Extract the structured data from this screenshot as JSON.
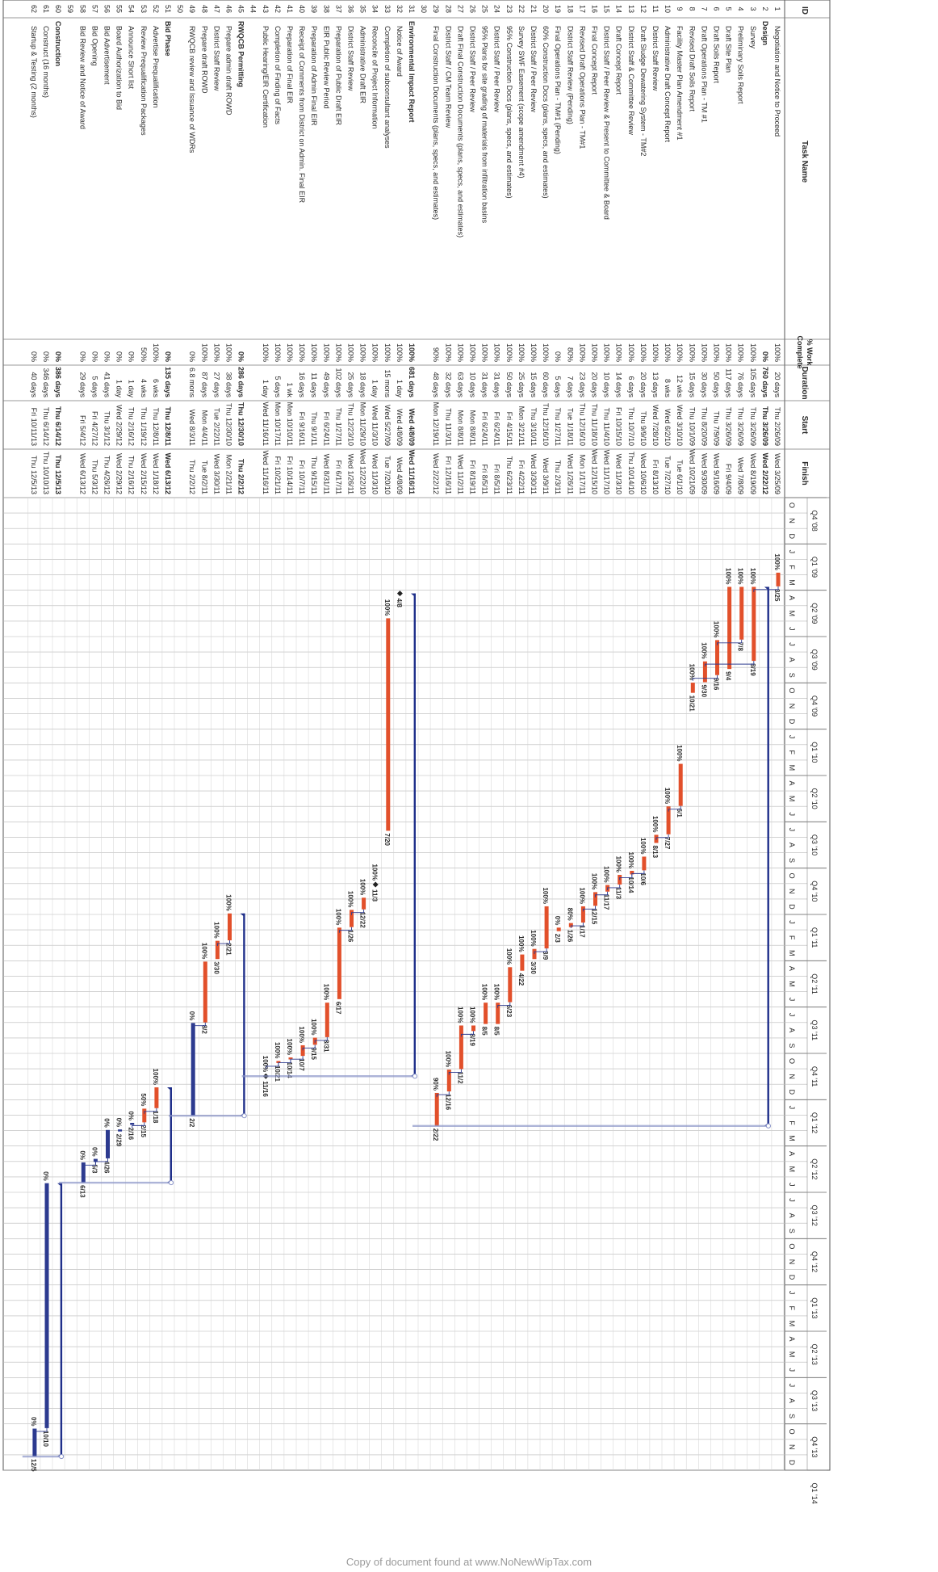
{
  "caption": "Copy of document found at www.NoNewWipTax.com",
  "headers": {
    "id": "ID",
    "task": "Task Name",
    "pct": "% Work Complete",
    "duration": "Duration",
    "start": "Start",
    "finish": "Finish"
  },
  "quarters": [
    "Q4 '08",
    "Q1 '09",
    "Q2 '09",
    "Q3 '09",
    "Q4 '09",
    "Q1 '10",
    "Q2 '10",
    "Q3 '10",
    "Q4 '10",
    "Q1 '11",
    "Q2 '11",
    "Q3 '11",
    "Q4 '11",
    "Q1 '12",
    "Q2 '12",
    "Q3 '12",
    "Q4 '12",
    "Q1 '13",
    "Q2 '13",
    "Q3 '13",
    "Q4 '13",
    "Q1 '14"
  ],
  "month_letters": "ONDJFMAMJJASONDJFMAMJJASONDJFMAMJJASONDJFMAMJJASONDJFMAMJJASONDJFMAMJJASOND",
  "tasks": [
    {
      "id": "1",
      "name": "Negotiation and Notice to Proceed",
      "pct": "100%",
      "dur": "20 days",
      "start": "Thu 2/26/09",
      "finish": "Wed 3/25/09",
      "s": "2009-02-26",
      "f": "2009-03-25",
      "kind": "task",
      "label": "3/25",
      "plabel": "100%"
    },
    {
      "id": "2",
      "name": "Design",
      "pct": "0%",
      "dur": "760 days",
      "start": "Thu 3/26/09",
      "finish": "Wed 2/22/12",
      "s": "2009-03-26",
      "f": "2012-02-22",
      "kind": "summary"
    },
    {
      "id": "3",
      "name": "Survey",
      "pct": "100%",
      "dur": "105 days",
      "start": "Thu 3/26/09",
      "finish": "Wed 8/19/09",
      "s": "2009-03-26",
      "f": "2009-08-19",
      "kind": "task",
      "label": "8/19",
      "plabel": "100%"
    },
    {
      "id": "4",
      "name": "Preliminary Soils Report",
      "pct": "100%",
      "dur": "76 days",
      "start": "Thu 3/26/09",
      "finish": "Wed 7/8/09",
      "s": "2009-03-26",
      "f": "2009-07-08",
      "kind": "task",
      "label": "7/8",
      "plabel": "100%"
    },
    {
      "id": "5",
      "name": "Draft Site Plan",
      "pct": "100%",
      "dur": "117 days",
      "start": "Thu 3/26/09",
      "finish": "Fri 9/4/09",
      "s": "2009-03-26",
      "f": "2009-09-04",
      "kind": "task",
      "label": "9/4",
      "plabel": "100%"
    },
    {
      "id": "6",
      "name": "Draft Soils Report",
      "pct": "100%",
      "dur": "50 days",
      "start": "Thu 7/9/09",
      "finish": "Wed 9/16/09",
      "s": "2009-07-09",
      "f": "2009-09-16",
      "kind": "task",
      "label": "9/16",
      "plabel": "100%"
    },
    {
      "id": "7",
      "name": "Draft Operations Plan - TM #1",
      "pct": "100%",
      "dur": "30 days",
      "start": "Thu 8/20/09",
      "finish": "Wed 9/30/09",
      "s": "2009-08-20",
      "f": "2009-09-30",
      "kind": "task",
      "label": "9/30",
      "plabel": "100%"
    },
    {
      "id": "8",
      "name": "Revised Draft Soils Report",
      "pct": "100%",
      "dur": "15 days",
      "start": "Thu 10/1/09",
      "finish": "Wed 10/21/09",
      "s": "2009-10-01",
      "f": "2009-10-21",
      "kind": "task",
      "label": "10/21",
      "plabel": "100%"
    },
    {
      "id": "9",
      "name": "Facility Master Plan Amendment #1",
      "pct": "100%",
      "dur": "12 wks",
      "start": "Wed 3/10/10",
      "finish": "Tue 6/1/10",
      "s": "2010-03-10",
      "f": "2010-06-01",
      "kind": "task",
      "label": "6/1",
      "plabel": "100%"
    },
    {
      "id": "10",
      "name": "Administrative Draft Concept Report",
      "pct": "100%",
      "dur": "8 wks",
      "start": "Wed 6/2/10",
      "finish": "Tue 7/27/10",
      "s": "2010-06-02",
      "f": "2010-07-27",
      "kind": "task",
      "label": "7/27",
      "plabel": "100%"
    },
    {
      "id": "11",
      "name": "District Staff Review",
      "pct": "100%",
      "dur": "13 days",
      "start": "Wed 7/28/10",
      "finish": "Fri 8/13/10",
      "s": "2010-07-28",
      "f": "2010-08-13",
      "kind": "task",
      "label": "8/13",
      "plabel": "100%"
    },
    {
      "id": "12",
      "name": "Draft Sludge Dewatering System - TM#2",
      "pct": "100%",
      "dur": "20 days",
      "start": "Thu 9/9/10",
      "finish": "Wed 10/6/10",
      "s": "2010-09-09",
      "f": "2010-10-06",
      "kind": "task",
      "label": "10/6",
      "plabel": "100%"
    },
    {
      "id": "13",
      "name": "District Staff & Committee Review",
      "pct": "100%",
      "dur": "6 days",
      "start": "Thu 10/7/10",
      "finish": "Thu 10/14/10",
      "s": "2010-10-07",
      "f": "2010-10-14",
      "kind": "task",
      "label": "10/14",
      "plabel": "100%"
    },
    {
      "id": "14",
      "name": "Draft Concept Report",
      "pct": "100%",
      "dur": "14 days",
      "start": "Fri 10/15/10",
      "finish": "Wed 11/3/10",
      "s": "2010-10-15",
      "f": "2010-11-03",
      "kind": "task",
      "label": "11/3",
      "plabel": "100%"
    },
    {
      "id": "15",
      "name": "District Staff / Peer Review & Present to Committee & Board",
      "pct": "100%",
      "dur": "10 days",
      "start": "Thu 11/4/10",
      "finish": "Wed 11/17/10",
      "s": "2010-11-04",
      "f": "2010-11-17",
      "kind": "task",
      "label": "11/17",
      "plabel": "100%"
    },
    {
      "id": "16",
      "name": "Final Concept Report",
      "pct": "100%",
      "dur": "20 days",
      "start": "Thu 11/18/10",
      "finish": "Wed 12/15/10",
      "s": "2010-11-18",
      "f": "2010-12-15",
      "kind": "task",
      "label": "12/15",
      "plabel": "100%"
    },
    {
      "id": "17",
      "name": "Revised Draft Operations Plan - TM#1",
      "pct": "100%",
      "dur": "23 days",
      "start": "Thu 12/16/10",
      "finish": "Mon 1/17/11",
      "s": "2010-12-16",
      "f": "2011-01-17",
      "kind": "task",
      "label": "1/17",
      "plabel": "100%"
    },
    {
      "id": "18",
      "name": "District Staff Review (Pending)",
      "pct": "80%",
      "dur": "7 days",
      "start": "Tue 1/18/11",
      "finish": "Wed 1/26/11",
      "s": "2011-01-18",
      "f": "2011-01-26",
      "kind": "task",
      "label": "1/26",
      "plabel": "80%"
    },
    {
      "id": "19",
      "name": "Final Operations Plan - TM#1 (Pending)",
      "pct": "0%",
      "dur": "5 days",
      "start": "Thu 1/27/11",
      "finish": "Thu 2/3/11",
      "s": "2011-01-27",
      "f": "2011-02-03",
      "kind": "task",
      "label": "2/3",
      "plabel": "0%"
    },
    {
      "id": "20",
      "name": "60% Construction Docs (plans, specs, and estimates)",
      "pct": "100%",
      "dur": "60 days",
      "start": "Thu 12/16/10",
      "finish": "Wed 3/9/11",
      "s": "2010-12-16",
      "f": "2011-03-09",
      "kind": "task",
      "label": "3/9",
      "plabel": "100%"
    },
    {
      "id": "21",
      "name": "District Staff / Peer Review",
      "pct": "100%",
      "dur": "15 days",
      "start": "Thu 3/10/11",
      "finish": "Wed 3/30/11",
      "s": "2011-03-10",
      "f": "2011-03-30",
      "kind": "task",
      "label": "3/30",
      "plabel": "100%"
    },
    {
      "id": "22",
      "name": "Survey SWF Easement (scope amendment #4)",
      "pct": "100%",
      "dur": "25 days",
      "start": "Mon 3/21/11",
      "finish": "Fri 4/22/11",
      "s": "2011-03-21",
      "f": "2011-04-22",
      "kind": "task",
      "label": "4/22",
      "plabel": "100%"
    },
    {
      "id": "23",
      "name": "95% Construction Docs (plans, specs, and estimates)",
      "pct": "100%",
      "dur": "50 days",
      "start": "Fri 4/15/11",
      "finish": "Thu 6/23/11",
      "s": "2011-04-15",
      "f": "2011-06-23",
      "kind": "task",
      "label": "6/23",
      "plabel": "100%"
    },
    {
      "id": "24",
      "name": "District Staff / Peer Review",
      "pct": "100%",
      "dur": "31 days",
      "start": "Fri 6/24/11",
      "finish": "Fri 8/5/11",
      "s": "2011-06-24",
      "f": "2011-08-05",
      "kind": "task",
      "label": "8/5",
      "plabel": "100%"
    },
    {
      "id": "25",
      "name": "95% Plans for site grading of materials from infiltration basins",
      "pct": "100%",
      "dur": "31 days",
      "start": "Fri 6/24/11",
      "finish": "Fri 8/5/11",
      "s": "2011-06-24",
      "f": "2011-08-05",
      "kind": "task",
      "label": "8/5",
      "plabel": "100%"
    },
    {
      "id": "26",
      "name": "District Staff / Peer Review",
      "pct": "100%",
      "dur": "10 days",
      "start": "Mon 8/8/11",
      "finish": "Fri 8/19/11",
      "s": "2011-08-08",
      "f": "2011-08-19",
      "kind": "task",
      "label": "8/19",
      "plabel": "100%"
    },
    {
      "id": "27",
      "name": "Draft Final Construction Documents (plans, specs, and estimates)",
      "pct": "100%",
      "dur": "63 days",
      "start": "Mon 8/8/11",
      "finish": "Wed 11/2/11",
      "s": "2011-08-08",
      "f": "2011-11-02",
      "kind": "task",
      "label": "11/2",
      "plabel": "100%"
    },
    {
      "id": "28",
      "name": "District Staff / CM Team Review",
      "pct": "100%",
      "dur": "32 days",
      "start": "Thu 11/3/11",
      "finish": "Fri 12/16/11",
      "s": "2011-11-03",
      "f": "2011-12-16",
      "kind": "task",
      "label": "12/16",
      "plabel": "100%"
    },
    {
      "id": "29",
      "name": "Final Construction Documents (plans, specs, and estimates)",
      "pct": "90%",
      "dur": "48 days",
      "start": "Mon 12/19/11",
      "finish": "Wed 2/22/12",
      "s": "2011-12-19",
      "f": "2012-02-22",
      "kind": "task",
      "label": "2/22",
      "plabel": "90%"
    },
    {
      "id": "30",
      "name": "",
      "pct": "",
      "dur": "",
      "start": "",
      "finish": "",
      "kind": "blank"
    },
    {
      "id": "31",
      "name": "Environmental Impact Report",
      "pct": "100%",
      "dur": "681 days",
      "start": "Wed 4/8/09",
      "finish": "Wed 11/16/11",
      "s": "2009-04-08",
      "f": "2011-11-16",
      "kind": "summary"
    },
    {
      "id": "32",
      "name": "Notice of Award",
      "pct": "100%",
      "dur": "1 day",
      "start": "Wed 4/8/09",
      "finish": "Wed 4/8/09",
      "s": "2009-04-08",
      "f": "2009-04-08",
      "kind": "milestone",
      "label": "4/8"
    },
    {
      "id": "33",
      "name": "Completion of subconsultant analyses",
      "pct": "100%",
      "dur": "15 mons",
      "start": "Wed 5/27/09",
      "finish": "Tue 7/20/10",
      "s": "2009-05-27",
      "f": "2010-07-20",
      "kind": "task",
      "label": "7/20",
      "plabel": "100%"
    },
    {
      "id": "34",
      "name": "Reconcile of Project Information",
      "pct": "100%",
      "dur": "1 day",
      "start": "Wed 11/3/10",
      "finish": "Wed 11/3/10",
      "s": "2010-11-03",
      "f": "2010-11-03",
      "kind": "milestone",
      "label": "11/3",
      "plabel": "100%"
    },
    {
      "id": "35",
      "name": "Administrative Draft EIR",
      "pct": "100%",
      "dur": "18 days",
      "start": "Mon 11/29/10",
      "finish": "Wed 12/22/10",
      "s": "2010-11-29",
      "f": "2010-12-22",
      "kind": "task",
      "label": "12/22",
      "plabel": "100%"
    },
    {
      "id": "36",
      "name": "District Staff Review",
      "pct": "100%",
      "dur": "25 days",
      "start": "Thu 12/23/10",
      "finish": "Wed 1/26/11",
      "s": "2010-12-23",
      "f": "2011-01-26",
      "kind": "task",
      "label": "1/26",
      "plabel": "100%"
    },
    {
      "id": "37",
      "name": "Preparation of Public Draft EIR",
      "pct": "100%",
      "dur": "102 days",
      "start": "Thu 1/27/11",
      "finish": "Fri 6/17/11",
      "s": "2011-01-27",
      "f": "2011-06-17",
      "kind": "task",
      "label": "6/17",
      "plabel": "100%"
    },
    {
      "id": "38",
      "name": "EIR Public Review Period",
      "pct": "100%",
      "dur": "49 days",
      "start": "Fri 6/24/11",
      "finish": "Wed 8/31/11",
      "s": "2011-06-24",
      "f": "2011-08-31",
      "kind": "task",
      "label": "8/31",
      "plabel": "100%"
    },
    {
      "id": "39",
      "name": "Preparation of Admin Final EIR",
      "pct": "100%",
      "dur": "11 days",
      "start": "Thu 9/1/11",
      "finish": "Thu 9/15/11",
      "s": "2011-09-01",
      "f": "2011-09-15",
      "kind": "task",
      "label": "9/15",
      "plabel": "100%"
    },
    {
      "id": "40",
      "name": "Receipt of Comments from District on Admin. Final EIR",
      "pct": "100%",
      "dur": "16 days",
      "start": "Fri 9/16/11",
      "finish": "Fri 10/7/11",
      "s": "2011-09-16",
      "f": "2011-10-07",
      "kind": "task",
      "label": "10/7",
      "plabel": "100%"
    },
    {
      "id": "41",
      "name": "Preparation of Final EIR",
      "pct": "100%",
      "dur": "1 wk",
      "start": "Mon 10/10/11",
      "finish": "Fri 10/14/11",
      "s": "2011-10-10",
      "f": "2011-10-14",
      "kind": "task",
      "label": "10/14",
      "plabel": "100%"
    },
    {
      "id": "42",
      "name": "Completion of Finding of Facts",
      "pct": "100%",
      "dur": "5 days",
      "start": "Mon 10/17/11",
      "finish": "Fri 10/21/11",
      "s": "2011-10-17",
      "f": "2011-10-21",
      "kind": "task",
      "label": "10/21",
      "plabel": "100%"
    },
    {
      "id": "43",
      "name": "Public Hearing/EIR Certification",
      "pct": "100%",
      "dur": "1 day",
      "start": "Wed 11/16/11",
      "finish": "Wed 11/16/11",
      "s": "2011-11-16",
      "f": "2011-11-16",
      "kind": "milestone",
      "label": "11/16",
      "plabel": "100%"
    },
    {
      "id": "44",
      "name": "",
      "pct": "",
      "dur": "",
      "start": "",
      "finish": "",
      "kind": "blank"
    },
    {
      "id": "45",
      "name": "RWQCB Permitting",
      "pct": "0%",
      "dur": "286 days",
      "start": "Thu 12/30/10",
      "finish": "Thu 2/2/12",
      "s": "2010-12-30",
      "f": "2012-02-02",
      "kind": "summary"
    },
    {
      "id": "46",
      "name": "Prepare admin draft ROWD",
      "pct": "100%",
      "dur": "38 days",
      "start": "Thu 12/30/10",
      "finish": "Mon 2/21/11",
      "s": "2010-12-30",
      "f": "2011-02-21",
      "kind": "task",
      "label": "2/21",
      "plabel": "100%"
    },
    {
      "id": "47",
      "name": "District Staff Review",
      "pct": "100%",
      "dur": "27 days",
      "start": "Tue 2/22/11",
      "finish": "Wed 3/30/11",
      "s": "2011-02-22",
      "f": "2011-03-30",
      "kind": "task",
      "label": "3/30",
      "plabel": "100%"
    },
    {
      "id": "48",
      "name": "Prepare draft ROWD",
      "pct": "100%",
      "dur": "87 days",
      "start": "Mon 4/4/11",
      "finish": "Tue 8/2/11",
      "s": "2011-04-04",
      "f": "2011-08-02",
      "kind": "task",
      "label": "8/2",
      "plabel": "100%"
    },
    {
      "id": "49",
      "name": "RWQCB review and Issuance of WDRs",
      "pct": "0%",
      "dur": "6.8 mons",
      "start": "Wed 8/3/11",
      "finish": "Thu 2/2/12",
      "s": "2011-08-03",
      "f": "2012-02-02",
      "kind": "task",
      "label": "2/2",
      "plabel": "0%",
      "color": "blue"
    },
    {
      "id": "50",
      "name": "",
      "pct": "",
      "dur": "",
      "start": "",
      "finish": "",
      "kind": "blank"
    },
    {
      "id": "51",
      "name": "Bid Phase",
      "pct": "0%",
      "dur": "135 days",
      "start": "Thu 12/8/11",
      "finish": "Wed 6/13/12",
      "s": "2011-12-08",
      "f": "2012-06-13",
      "kind": "summary"
    },
    {
      "id": "52",
      "name": "Advertise Prequalification",
      "pct": "100%",
      "dur": "6 wks",
      "start": "Thu 12/8/11",
      "finish": "Wed 1/18/12",
      "s": "2011-12-08",
      "f": "2012-01-18",
      "kind": "task",
      "label": "1/18",
      "plabel": "100%"
    },
    {
      "id": "53",
      "name": "Review Prequalification Packages",
      "pct": "50%",
      "dur": "4 wks",
      "start": "Thu 1/19/12",
      "finish": "Wed 2/15/12",
      "s": "2012-01-19",
      "f": "2012-02-15",
      "kind": "task",
      "label": "2/15",
      "plabel": "50%"
    },
    {
      "id": "54",
      "name": "Announce Short list",
      "pct": "0%",
      "dur": "1 day",
      "start": "Thu 2/16/12",
      "finish": "Thu 2/16/12",
      "s": "2012-02-16",
      "f": "2012-02-16",
      "kind": "task",
      "label": "2/16",
      "plabel": "0%",
      "color": "blue"
    },
    {
      "id": "55",
      "name": "Board Authorization to Bid",
      "pct": "0%",
      "dur": "1 day",
      "start": "Wed 2/29/12",
      "finish": "Wed 2/29/12",
      "s": "2012-02-29",
      "f": "2012-02-29",
      "kind": "task",
      "label": "2/29",
      "plabel": "0%",
      "color": "blue"
    },
    {
      "id": "56",
      "name": "Bid Advertisement",
      "pct": "0%",
      "dur": "41 days",
      "start": "Thu 3/1/12",
      "finish": "Thu 4/26/12",
      "s": "2012-03-01",
      "f": "2012-04-26",
      "kind": "task",
      "label": "4/26",
      "plabel": "0%",
      "color": "blue"
    },
    {
      "id": "57",
      "name": "Bid Opening",
      "pct": "0%",
      "dur": "5 days",
      "start": "Fri 4/27/12",
      "finish": "Thu 5/3/12",
      "s": "2012-04-27",
      "f": "2012-05-03",
      "kind": "task",
      "label": "5/3",
      "plabel": "0%",
      "color": "blue"
    },
    {
      "id": "58",
      "name": "Bid Review and Notice of Award",
      "pct": "0%",
      "dur": "29 days",
      "start": "Fri 5/4/12",
      "finish": "Wed 6/13/12",
      "s": "2012-05-04",
      "f": "2012-06-13",
      "kind": "task",
      "label": "6/13",
      "plabel": "0%",
      "color": "blue"
    },
    {
      "id": "59",
      "name": "",
      "pct": "",
      "dur": "",
      "start": "",
      "finish": "",
      "kind": "blank"
    },
    {
      "id": "60",
      "name": "Construction",
      "pct": "0%",
      "dur": "386 days",
      "start": "Thu 6/14/12",
      "finish": "Thu 12/5/13",
      "s": "2012-06-14",
      "f": "2013-12-05",
      "kind": "summary"
    },
    {
      "id": "61",
      "name": "Construct (16 months)",
      "pct": "0%",
      "dur": "346 days",
      "start": "Thu 6/14/12",
      "finish": "Thu 10/10/13",
      "s": "2012-06-14",
      "f": "2013-10-10",
      "kind": "task",
      "label": "10/10",
      "plabel": "0%",
      "color": "blue"
    },
    {
      "id": "62",
      "name": "Startup & Testing (2 months)",
      "pct": "0%",
      "dur": "40 days",
      "start": "Fri 10/11/13",
      "finish": "Thu 12/5/13",
      "s": "2013-10-11",
      "f": "2013-12-05",
      "kind": "task",
      "label": "12/5",
      "plabel": "0%",
      "color": "blue"
    }
  ]
}
